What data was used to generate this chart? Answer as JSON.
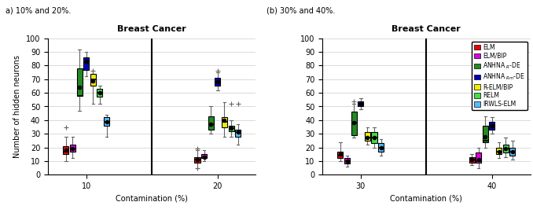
{
  "title": "Breast Cancer",
  "xlabel": "Contamination (%)",
  "ylabel": "Number of hidden neurons",
  "ylim": [
    0,
    100
  ],
  "panel_a_label": "a) 10% and 20%.",
  "panel_b_label": "(b) 30% and 40%.",
  "series_keys": [
    "ELM",
    "ELM/BIP",
    "ANHNA_R_DE",
    "ANHNA_Rm_DE",
    "R-ELM/BIP",
    "RELM",
    "IRWLS-ELM"
  ],
  "colors_map": {
    "ELM": "#EE0000",
    "ELM/BIP": "#DD00DD",
    "ANHNA_R_DE": "#228B22",
    "ANHNA_Rm_DE": "#0000BB",
    "R-ELM/BIP": "#EEEE00",
    "RELM": "#44DD44",
    "IRWLS-ELM": "#55BBFF"
  },
  "legend_labels": [
    "ELM",
    "ELM/BIP",
    "ANHNA $_{R}$-DE",
    "ANHNA $_{Rm}$-DE",
    "R-ELM/BIP",
    "RELM",
    "IRWLS-ELM"
  ],
  "panel_a": {
    "group_labels": [
      "10",
      "20"
    ],
    "groups": {
      "10": {
        "ELM": {
          "whislo": 10,
          "q1": 15,
          "med": 17,
          "q3": 21,
          "whishi": 28,
          "mean": 18,
          "fliers": [
            35
          ]
        },
        "ELM/BIP": {
          "whislo": 12,
          "q1": 17,
          "med": 19,
          "q3": 22,
          "whishi": 28,
          "mean": 19,
          "fliers": []
        },
        "ANHNA_R_DE": {
          "whislo": 47,
          "q1": 58,
          "med": 58,
          "q3": 78,
          "whishi": 92,
          "mean": 64,
          "fliers": []
        },
        "ANHNA_Rm_DE": {
          "whislo": 72,
          "q1": 77,
          "med": 82,
          "q3": 86,
          "whishi": 90,
          "mean": 83,
          "fliers": []
        },
        "R-ELM/BIP": {
          "whislo": 52,
          "q1": 65,
          "med": 70,
          "q3": 74,
          "whishi": 76,
          "mean": 69,
          "fliers": [
            76
          ]
        },
        "RELM": {
          "whislo": 52,
          "q1": 57,
          "med": 60,
          "q3": 63,
          "whishi": 65,
          "mean": 60,
          "fliers": []
        },
        "IRWLS-ELM": {
          "whislo": 28,
          "q1": 36,
          "med": 39,
          "q3": 42,
          "whishi": 44,
          "mean": 39,
          "fliers": []
        }
      },
      "20": {
        "ELM": {
          "whislo": 5,
          "q1": 9,
          "med": 11,
          "q3": 13,
          "whishi": 18,
          "mean": 11,
          "fliers": [
            5,
            19
          ]
        },
        "ELM/BIP": {
          "whislo": 10,
          "q1": 12,
          "med": 13,
          "q3": 15,
          "whishi": 18,
          "mean": 13,
          "fliers": []
        },
        "ANHNA_R_DE": {
          "whislo": 30,
          "q1": 33,
          "med": 37,
          "q3": 43,
          "whishi": 50,
          "mean": 37,
          "fliers": []
        },
        "ANHNA_Rm_DE": {
          "whislo": 62,
          "q1": 65,
          "med": 68,
          "q3": 71,
          "whishi": 75,
          "mean": 68,
          "fliers": [
            76
          ]
        },
        "R-ELM/BIP": {
          "whislo": 28,
          "q1": 35,
          "med": 39,
          "q3": 42,
          "whishi": 53,
          "mean": 40,
          "fliers": []
        },
        "RELM": {
          "whislo": 28,
          "q1": 32,
          "med": 34,
          "q3": 36,
          "whishi": 40,
          "mean": 34,
          "fliers": [
            52
          ]
        },
        "IRWLS-ELM": {
          "whislo": 22,
          "q1": 28,
          "med": 31,
          "q3": 33,
          "whishi": 37,
          "mean": 31,
          "fliers": [
            52
          ]
        }
      }
    }
  },
  "panel_b": {
    "group_labels": [
      "30",
      "40"
    ],
    "groups": {
      "30": {
        "ELM": {
          "whislo": 10,
          "q1": 12,
          "med": 14,
          "q3": 17,
          "whishi": 24,
          "mean": 15,
          "fliers": []
        },
        "ELM/BIP": {
          "whislo": 6,
          "q1": 8,
          "med": 10,
          "q3": 12,
          "whishi": 14,
          "mean": 10,
          "fliers": []
        },
        "ANHNA_R_DE": {
          "whislo": 27,
          "q1": 29,
          "med": 38,
          "q3": 46,
          "whishi": 52,
          "mean": 38,
          "fliers": [
            54
          ]
        },
        "ANHNA_Rm_DE": {
          "whislo": 48,
          "q1": 50,
          "med": 52,
          "q3": 54,
          "whishi": 56,
          "mean": 52,
          "fliers": []
        },
        "R-ELM/BIP": {
          "whislo": 22,
          "q1": 25,
          "med": 27,
          "q3": 31,
          "whishi": 35,
          "mean": 27,
          "fliers": []
        },
        "RELM": {
          "whislo": 20,
          "q1": 23,
          "med": 27,
          "q3": 31,
          "whishi": 35,
          "mean": 27,
          "fliers": []
        },
        "IRWLS-ELM": {
          "whislo": 14,
          "q1": 17,
          "med": 20,
          "q3": 23,
          "whishi": 26,
          "mean": 20,
          "fliers": []
        }
      },
      "40": {
        "ELM": {
          "whislo": 7,
          "q1": 9,
          "med": 11,
          "q3": 13,
          "whishi": 15,
          "mean": 11,
          "fliers": []
        },
        "ELM/BIP": {
          "whislo": 5,
          "q1": 9,
          "med": 10,
          "q3": 16,
          "whishi": 20,
          "mean": 11,
          "fliers": []
        },
        "ANHNA_R_DE": {
          "whislo": 20,
          "q1": 24,
          "med": 25,
          "q3": 36,
          "whishi": 43,
          "mean": 28,
          "fliers": []
        },
        "ANHNA_Rm_DE": {
          "whislo": 30,
          "q1": 33,
          "med": 36,
          "q3": 39,
          "whishi": 42,
          "mean": 36,
          "fliers": []
        },
        "R-ELM/BIP": {
          "whislo": 12,
          "q1": 15,
          "med": 17,
          "q3": 20,
          "whishi": 24,
          "mean": 17,
          "fliers": []
        },
        "RELM": {
          "whislo": 13,
          "q1": 16,
          "med": 19,
          "q3": 22,
          "whishi": 27,
          "mean": 19,
          "fliers": []
        },
        "IRWLS-ELM": {
          "whislo": 11,
          "q1": 14,
          "med": 17,
          "q3": 20,
          "whishi": 25,
          "mean": 17,
          "fliers": []
        }
      }
    }
  }
}
